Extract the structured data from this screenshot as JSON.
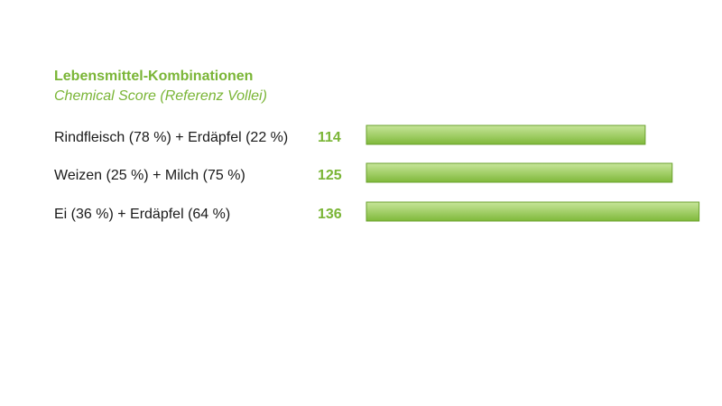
{
  "chart_data": {
    "type": "bar",
    "orientation": "horizontal",
    "title": "Lebensmittel-Kombinationen",
    "subtitle": "Chemical Score (Referenz Vollei)",
    "categories": [
      "Rindfleisch (78 %) + Erdäpfel (22 %)",
      "Weizen (25 %) + Milch (75 %)",
      "Ei (36 %) + Erdäpfel (64 %)"
    ],
    "values": [
      114,
      125,
      136
    ],
    "value_labels": [
      "114",
      "125",
      "136"
    ],
    "grid": false,
    "legend": "none",
    "colors": {
      "bar_top": "#c7e59a",
      "bar_bottom": "#7fb93a",
      "bar_stroke": "#6aa12c",
      "accent_text": "#7ab536"
    }
  }
}
